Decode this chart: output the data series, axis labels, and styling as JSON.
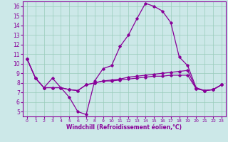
{
  "xlabel": "Windchill (Refroidissement éolien,°C)",
  "xlim": [
    -0.5,
    23.5
  ],
  "ylim": [
    4.5,
    16.5
  ],
  "yticks": [
    5,
    6,
    7,
    8,
    9,
    10,
    11,
    12,
    13,
    14,
    15,
    16
  ],
  "xticks": [
    0,
    1,
    2,
    3,
    4,
    5,
    6,
    7,
    8,
    9,
    10,
    11,
    12,
    13,
    14,
    15,
    16,
    17,
    18,
    19,
    20,
    21,
    22,
    23
  ],
  "background_color": "#cce8e8",
  "line_color": "#880099",
  "grid_color": "#99ccbb",
  "line1_y": [
    10.5,
    8.5,
    7.5,
    8.5,
    7.5,
    6.5,
    5.0,
    4.7,
    8.2,
    9.5,
    9.8,
    11.8,
    13.0,
    14.7,
    16.3,
    16.0,
    15.5,
    14.3,
    10.7,
    9.8,
    7.5,
    7.2,
    7.3,
    7.8
  ],
  "line2_y": [
    10.5,
    8.5,
    7.5,
    7.5,
    7.5,
    7.3,
    7.2,
    7.8,
    8.0,
    8.2,
    8.3,
    8.4,
    8.6,
    8.7,
    8.8,
    8.9,
    9.0,
    9.1,
    9.2,
    9.3,
    7.4,
    7.2,
    7.3,
    7.8
  ],
  "line3_y": [
    10.5,
    8.5,
    7.5,
    7.5,
    7.5,
    7.3,
    7.2,
    7.8,
    8.0,
    8.2,
    8.2,
    8.3,
    8.4,
    8.5,
    8.6,
    8.7,
    8.7,
    8.8,
    8.8,
    8.8,
    7.4,
    7.2,
    7.3,
    7.8
  ]
}
